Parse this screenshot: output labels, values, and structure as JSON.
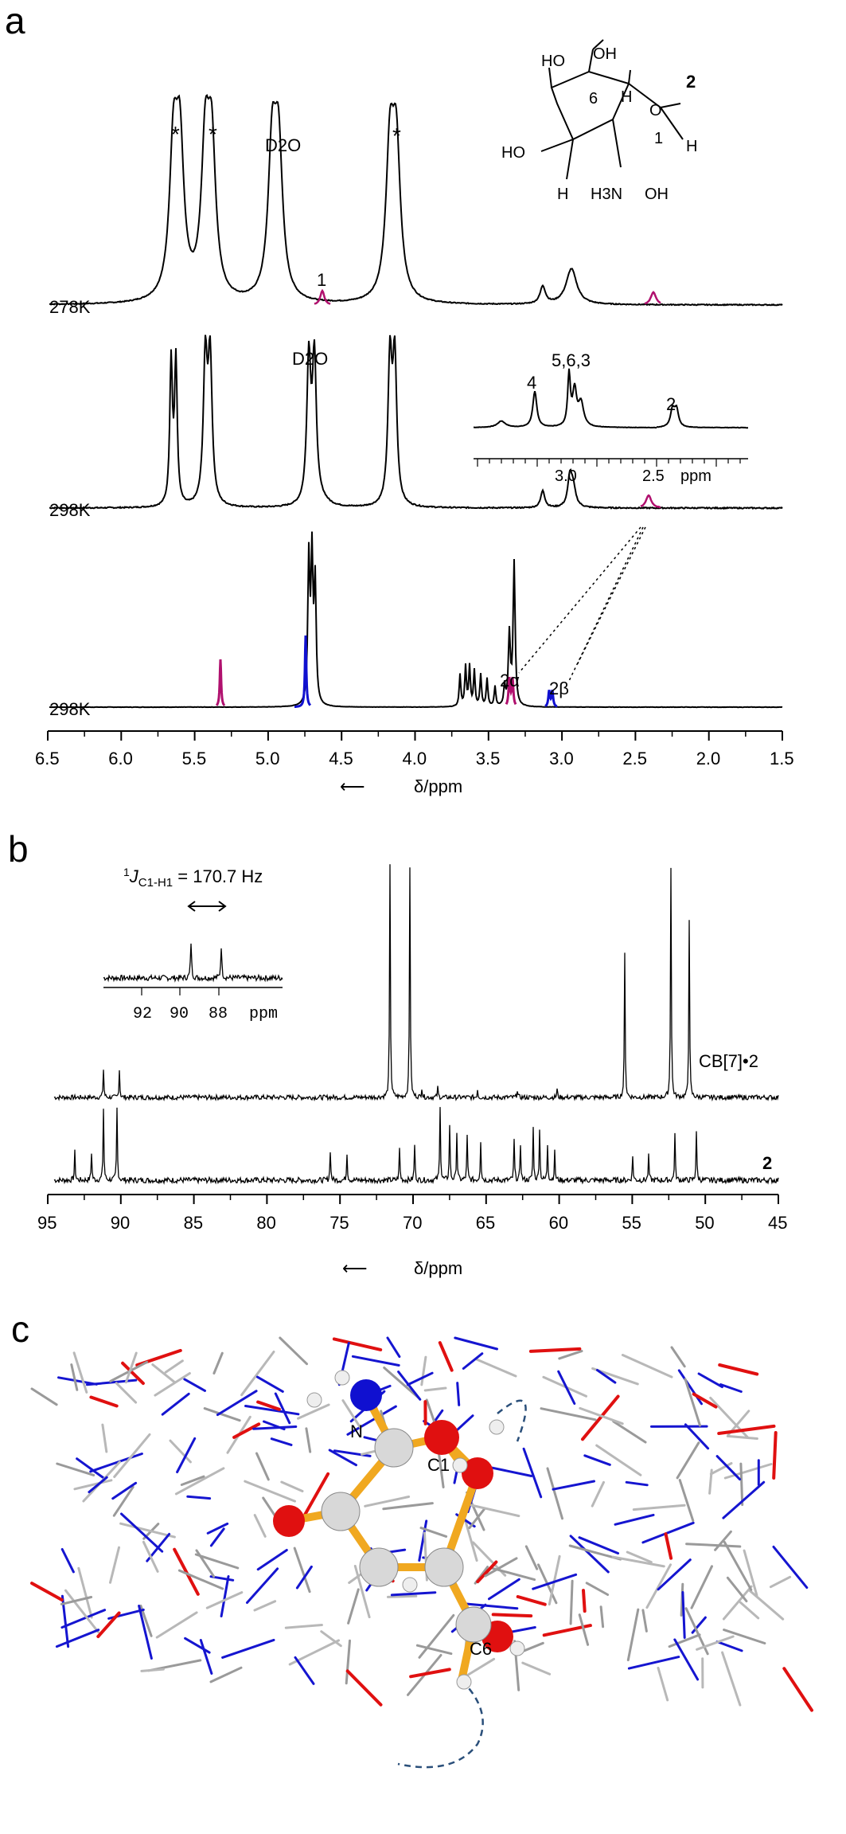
{
  "panels": {
    "a": {
      "letter": "a",
      "compound_number": "2",
      "structure_labels": [
        "OH",
        "OH",
        "HO",
        "6",
        "H",
        "O",
        "1",
        "H",
        "HO",
        "H",
        "H3N",
        "OH"
      ],
      "traces": [
        {
          "label": "278K",
          "peak_labels": {
            "star1": "*",
            "star2": "*",
            "d2o": "D2O",
            "star3": "*",
            "h1": "1"
          }
        },
        {
          "label": "298K",
          "peak_labels": {
            "d2o": "D2O"
          }
        },
        {
          "label": "298K",
          "peak_labels": {
            "alpha": "2α",
            "beta": "2β"
          }
        }
      ],
      "inset": {
        "labels": [
          "4",
          "5,6,3",
          "2"
        ],
        "ticks": [
          "3.0",
          "2.5"
        ],
        "unit": "ppm"
      },
      "x_ticks": [
        "6.5",
        "6.0",
        "5.5",
        "5.0",
        "4.5",
        "4.0",
        "3.5",
        "3.0",
        "2.5",
        "2.0",
        "1.5"
      ],
      "x_axis_label": "δ/ppm"
    },
    "b": {
      "letter": "b",
      "coupling_label": "1JC1-H1 = 170.7 Hz",
      "coupling_sup": "1",
      "coupling_J": "J",
      "coupling_sub": "C1-H1",
      "coupling_value": " = 170.7 Hz",
      "inset_ticks": [
        "92",
        "90",
        "88"
      ],
      "inset_unit": "ppm",
      "trace_labels": [
        "CB[7]•2",
        "2"
      ],
      "x_ticks": [
        "95",
        "90",
        "85",
        "80",
        "75",
        "70",
        "65",
        "60",
        "55",
        "50",
        "45"
      ],
      "x_axis_label": "δ/ppm"
    },
    "c": {
      "letter": "c",
      "atom_labels": [
        "N",
        "C1",
        "C6"
      ]
    }
  },
  "colors": {
    "magenta": "#b0106e",
    "blue": "#1010d0",
    "orange": "#f0a820",
    "red": "#e01010",
    "dashed": "#2a4f7a"
  }
}
